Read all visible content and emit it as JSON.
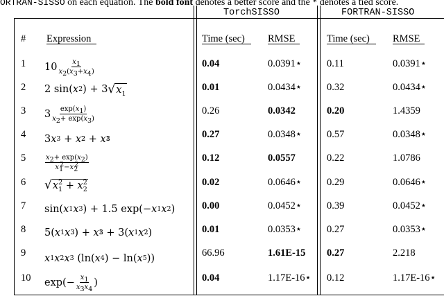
{
  "caption": {
    "part1": "ORTRAN-SISSO",
    "part2": " on each equation. The ",
    "part3": "bold font",
    "part4": " denotes a better score and the * denotes a tied score."
  },
  "groups": {
    "torch": "TorchSISSO",
    "fortran": "FORTRAN-SISSO"
  },
  "columns": {
    "index": "#",
    "expression": "Expression",
    "time": "Time (sec)",
    "rmse": "RMSE"
  },
  "rows": [
    {
      "n": "1",
      "t1": "0.04",
      "r1": "0.0391⋆",
      "t2": "0.11",
      "r2": "0.0391⋆",
      "bold": [
        "t1"
      ]
    },
    {
      "n": "2",
      "t1": "0.01",
      "r1": "0.0434⋆",
      "t2": "0.32",
      "r2": "0.0434⋆",
      "bold": [
        "t1"
      ]
    },
    {
      "n": "3",
      "t1": "0.26",
      "r1": "0.0342",
      "t2": "0.20",
      "r2": "1.4359",
      "bold": [
        "r1",
        "t2"
      ]
    },
    {
      "n": "4",
      "t1": "0.27",
      "r1": "0.0348⋆",
      "t2": "0.57",
      "r2": "0.0348⋆",
      "bold": [
        "t1"
      ]
    },
    {
      "n": "5",
      "t1": "0.12",
      "r1": "0.0557",
      "t2": "0.22",
      "r2": "1.0786",
      "bold": [
        "t1",
        "r1"
      ]
    },
    {
      "n": "6",
      "t1": "0.02",
      "r1": "0.0646⋆",
      "t2": "0.29",
      "r2": "0.0646⋆",
      "bold": [
        "t1"
      ]
    },
    {
      "n": "7",
      "t1": "0.00",
      "r1": "0.0452⋆",
      "t2": "0.39",
      "r2": "0.0452⋆",
      "bold": [
        "t1"
      ]
    },
    {
      "n": "8",
      "t1": "0.01",
      "r1": "0.0353⋆",
      "t2": "0.27",
      "r2": "0.0353⋆",
      "bold": [
        "t1"
      ]
    },
    {
      "n": "9",
      "t1": "66.96",
      "r1": "1.61E-15",
      "t2": "0.27",
      "r2": "2.218",
      "bold": [
        "r1",
        "t2"
      ]
    },
    {
      "n": "10",
      "t1": "0.04",
      "r1": "1.17E-16⋆",
      "t2": "0.12",
      "r2": "1.17E-16⋆",
      "bold": [
        "t1"
      ]
    }
  ],
  "expr": {
    "e1": {
      "coef": "10",
      "x": "x",
      "one": "1",
      "two": "2",
      "three": "3",
      "four": "4",
      "lp": "(",
      "rp": ")",
      "plus": "+"
    },
    "e2": {
      "a": "2 sin(",
      "b": ")",
      "plus": "+ 3",
      "x": "x",
      "one": "1",
      "two": "2"
    },
    "e3": {
      "coef": "3",
      "num": "exp(",
      "x": "x",
      "one": "1",
      "two": "2",
      "three": "3",
      "rp": ")",
      "den1": "+ exp("
    },
    "e4": {
      "three": "3",
      "x": "x",
      "one": "1",
      "two": "2",
      "plus": "+"
    },
    "e5": {
      "num1": "+ exp(",
      "rp": ")",
      "minus": "−",
      "x": "x",
      "one": "1",
      "two": "2"
    },
    "e6": {
      "x": "x",
      "one": "1",
      "two": "2",
      "plus": "+"
    },
    "e7": {
      "sin": "sin(",
      "rp": ")",
      "mid": "+ 1.5 exp(−",
      "x": "x",
      "one": "1",
      "two": "2",
      "three": "3"
    },
    "e8": {
      "five": "5(",
      "lp": "(",
      "rp": ")",
      "plus": "+",
      "three": "3",
      "x": "x",
      "one": "1",
      "two": "2"
    },
    "e9": {
      "x": "x",
      "one": "1",
      "two": "2",
      "three": "3",
      "four": "4",
      "five": "5",
      "mid": "(ln(",
      "mid2": ") − ln(",
      "end": "))"
    },
    "e10": {
      "exp": "exp(−",
      "rp": ")",
      "x": "x",
      "one": "1",
      "three": "3",
      "four": "4"
    }
  }
}
